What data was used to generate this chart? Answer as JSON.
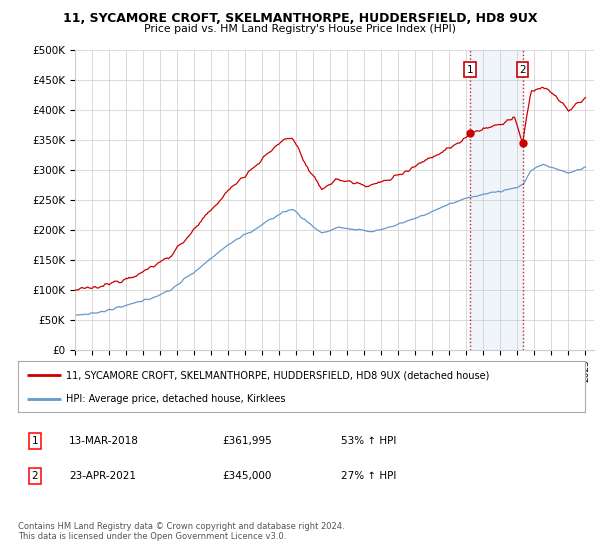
{
  "title": "11, SYCAMORE CROFT, SKELMANTHORPE, HUDDERSFIELD, HD8 9UX",
  "subtitle": "Price paid vs. HM Land Registry's House Price Index (HPI)",
  "ylabel_ticks": [
    "£0",
    "£50K",
    "£100K",
    "£150K",
    "£200K",
    "£250K",
    "£300K",
    "£350K",
    "£400K",
    "£450K",
    "£500K"
  ],
  "ytick_values": [
    0,
    50000,
    100000,
    150000,
    200000,
    250000,
    300000,
    350000,
    400000,
    450000,
    500000
  ],
  "ylim": [
    0,
    500000
  ],
  "xlim_start": 1995.0,
  "xlim_end": 2025.5,
  "red_line_color": "#cc0000",
  "blue_line_color": "#6699cc",
  "marker_color": "#cc0000",
  "sale1_x": 2018.2,
  "sale1_y": 361995,
  "sale1_label": "1",
  "sale2_x": 2021.3,
  "sale2_y": 345000,
  "sale2_label": "2",
  "vline_color": "#cc0000",
  "vline_style": ":",
  "highlight_bg_color": "#ddeeff",
  "legend_line1": "11, SYCAMORE CROFT, SKELMANTHORPE, HUDDERSFIELD, HD8 9UX (detached house)",
  "legend_line2": "HPI: Average price, detached house, Kirklees",
  "annotation1_date": "13-MAR-2018",
  "annotation1_price": "£361,995",
  "annotation1_hpi": "53% ↑ HPI",
  "annotation2_date": "23-APR-2021",
  "annotation2_price": "£345,000",
  "annotation2_hpi": "27% ↑ HPI",
  "footer": "Contains HM Land Registry data © Crown copyright and database right 2024.\nThis data is licensed under the Open Government Licence v3.0.",
  "background_color": "#ffffff",
  "grid_color": "#cccccc"
}
